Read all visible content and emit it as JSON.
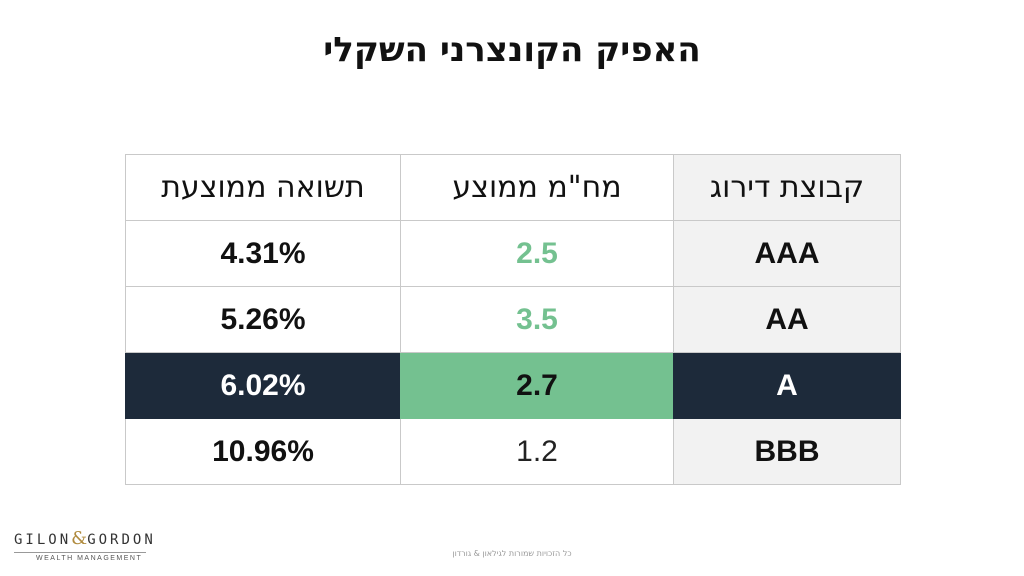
{
  "slide": {
    "title": "האפיק הקונצרני השקלי"
  },
  "table": {
    "headers": {
      "rating_group": "קבוצת דירוג",
      "avg_duration": "מח\"מ ממוצע",
      "avg_yield": "תשואה ממוצעת"
    },
    "rows": [
      {
        "rating": "AAA",
        "duration": "2.5",
        "yield": "4.31%"
      },
      {
        "rating": "AA",
        "duration": "3.5",
        "yield": "5.26%"
      },
      {
        "rating": "A",
        "duration": "2.7",
        "yield": "6.02%"
      },
      {
        "rating": "BBB",
        "duration": "1.2",
        "yield": "10.96%"
      }
    ]
  },
  "logo": {
    "left": "GILON",
    "amp": "&",
    "right": "GORDON",
    "sub": "WEALTH MANAGEMENT"
  },
  "footer": {
    "text": "כל הזכויות שמורות לגילאון & גורדון"
  },
  "colors": {
    "navy": "#1d2a3a",
    "green": "#74c190",
    "header_gray": "#f2f2f2"
  }
}
